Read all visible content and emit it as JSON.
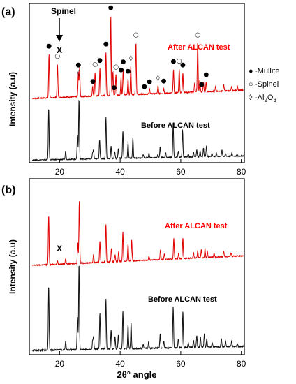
{
  "chart_data": [
    {
      "type": "line",
      "panel": "(a)",
      "xlabel": "",
      "ylabel": "Intensity (a.u)",
      "xlim": [
        10,
        81
      ],
      "x_ticks": [
        20,
        40,
        60,
        80
      ],
      "grid": false,
      "top_marker": {
        "label": "Spinel",
        "symbol": "X",
        "x": 19.3
      },
      "legend": {
        "position": "right",
        "entries": [
          {
            "symbol": "●",
            "label": "-Mullite"
          },
          {
            "symbol": "○",
            "label": "-Spinel"
          },
          {
            "symbol": "◊",
            "label": "-Al2O3",
            "display_prefix": "-Al",
            "display_sub1": "2",
            "display_mid": "O",
            "display_sub2": "3"
          }
        ]
      },
      "series": [
        {
          "name": "After ALCAN test",
          "color": "#ff0000",
          "line_color": "#e00000",
          "peaks": [
            [
              16.5,
              0.55
            ],
            [
              19.3,
              0.42
            ],
            [
              26.2,
              0.3
            ],
            [
              26.6,
              0.36
            ],
            [
              30.9,
              0.12
            ],
            [
              31.7,
              0.3
            ],
            [
              33.3,
              0.35
            ],
            [
              35.3,
              0.55
            ],
            [
              36.9,
              1.0
            ],
            [
              37.6,
              0.3
            ],
            [
              38.6,
              0.26
            ],
            [
              40.3,
              0.22
            ],
            [
              41.0,
              0.32
            ],
            [
              42.6,
              0.2
            ],
            [
              43.5,
              0.36
            ],
            [
              45.2,
              0.65
            ],
            [
              49.7,
              0.06
            ],
            [
              52.5,
              0.1
            ],
            [
              54.4,
              0.06
            ],
            [
              57.6,
              0.3
            ],
            [
              59.5,
              0.3
            ],
            [
              60.7,
              0.25
            ],
            [
              64.6,
              0.12
            ],
            [
              65.6,
              0.62
            ],
            [
              66.3,
              0.15
            ],
            [
              67.5,
              0.12
            ],
            [
              68.4,
              0.12
            ],
            [
              71.5,
              0.06
            ],
            [
              74.2,
              0.08
            ],
            [
              76.8,
              0.05
            ],
            [
              78.7,
              0.06
            ]
          ],
          "markers": [
            {
              "symbol": "●",
              "x": 16.5
            },
            {
              "symbol": "○",
              "x": 19.3
            },
            {
              "symbol": "◊",
              "x": 26.4
            },
            {
              "symbol": "●",
              "x": 26.2
            },
            {
              "symbol": "○",
              "x": 31.7
            },
            {
              "symbol": "●",
              "x": 31.0
            },
            {
              "symbol": "●",
              "x": 33.3
            },
            {
              "symbol": "●",
              "x": 35.3
            },
            {
              "symbol": "●",
              "x": 36.9
            },
            {
              "symbol": "●",
              "x": 38.0
            },
            {
              "symbol": "○",
              "x": 38.6
            },
            {
              "symbol": "●",
              "x": 40.3
            },
            {
              "symbol": "●",
              "x": 41.0
            },
            {
              "symbol": "●",
              "x": 42.6
            },
            {
              "symbol": "◊",
              "x": 43.5
            },
            {
              "symbol": "○",
              "x": 45.2
            },
            {
              "symbol": "●",
              "x": 48.0
            },
            {
              "symbol": "●",
              "x": 49.7
            },
            {
              "symbol": "◊",
              "x": 52.5
            },
            {
              "symbol": "●",
              "x": 54.4
            },
            {
              "symbol": "●",
              "x": 57.6
            },
            {
              "symbol": "○",
              "x": 59.5
            },
            {
              "symbol": "●",
              "x": 60.7
            },
            {
              "symbol": "○",
              "x": 65.6
            },
            {
              "symbol": "●",
              "x": 66.9
            },
            {
              "symbol": "●",
              "x": 68.4
            }
          ]
        },
        {
          "name": "Before ALCAN test",
          "color": "#000000",
          "line_color": "#111111",
          "peaks": [
            [
              16.4,
              0.85
            ],
            [
              22.0,
              0.14
            ],
            [
              25.9,
              0.4
            ],
            [
              26.4,
              1.0
            ],
            [
              30.9,
              0.1
            ],
            [
              31.2,
              0.14
            ],
            [
              33.2,
              0.32
            ],
            [
              35.3,
              0.68
            ],
            [
              37.0,
              0.2
            ],
            [
              38.2,
              0.12
            ],
            [
              39.4,
              0.16
            ],
            [
              40.9,
              0.45
            ],
            [
              42.6,
              0.26
            ],
            [
              44.2,
              0.34
            ],
            [
              47.6,
              0.06
            ],
            [
              49.5,
              0.08
            ],
            [
              52.4,
              0.05
            ],
            [
              53.2,
              0.18
            ],
            [
              55.0,
              0.08
            ],
            [
              57.5,
              0.57
            ],
            [
              59.2,
              0.1
            ],
            [
              60.6,
              0.45
            ],
            [
              62.5,
              0.05
            ],
            [
              64.2,
              0.08
            ],
            [
              65.3,
              0.12
            ],
            [
              66.4,
              0.1
            ],
            [
              67.5,
              0.14
            ],
            [
              68.5,
              0.18
            ],
            [
              70.3,
              0.06
            ],
            [
              71.8,
              0.05
            ],
            [
              73.6,
              0.1
            ],
            [
              74.8,
              0.05
            ],
            [
              76.9,
              0.06
            ],
            [
              78.6,
              0.04
            ]
          ]
        }
      ]
    },
    {
      "type": "line",
      "panel": "(b)",
      "xlabel": "2θ° angle",
      "ylabel": "Intensity (a.u)",
      "xlim": [
        10,
        81
      ],
      "x_ticks": [
        20,
        40,
        60,
        80
      ],
      "grid": false,
      "annotation": {
        "text": "X",
        "x": 19.3
      },
      "series": [
        {
          "name": "After ALCAN test",
          "color": "#ff0000",
          "line_color": "#e00000",
          "peaks": [
            [
              16.4,
              0.72
            ],
            [
              19.3,
              0.05
            ],
            [
              22.0,
              0.08
            ],
            [
              26.0,
              0.3
            ],
            [
              26.5,
              0.9
            ],
            [
              31.2,
              0.12
            ],
            [
              33.3,
              0.3
            ],
            [
              35.3,
              0.55
            ],
            [
              37.1,
              0.2
            ],
            [
              38.3,
              0.1
            ],
            [
              39.5,
              0.14
            ],
            [
              40.9,
              0.43
            ],
            [
              42.6,
              0.25
            ],
            [
              43.8,
              0.3
            ],
            [
              49.5,
              0.06
            ],
            [
              53.3,
              0.14
            ],
            [
              54.6,
              0.08
            ],
            [
              57.7,
              0.3
            ],
            [
              59.3,
              0.08
            ],
            [
              60.7,
              0.3
            ],
            [
              64.2,
              0.08
            ],
            [
              65.6,
              0.1
            ],
            [
              66.8,
              0.12
            ],
            [
              68.0,
              0.12
            ],
            [
              68.8,
              0.08
            ],
            [
              71.0,
              0.06
            ],
            [
              74.2,
              0.08
            ],
            [
              76.6,
              0.05
            ]
          ]
        },
        {
          "name": "Before ALCAN test",
          "color": "#000000",
          "line_color": "#111111",
          "peaks": [
            [
              16.4,
              0.75
            ],
            [
              22.0,
              0.1
            ],
            [
              25.9,
              0.38
            ],
            [
              26.4,
              1.0
            ],
            [
              30.9,
              0.1
            ],
            [
              31.2,
              0.14
            ],
            [
              33.3,
              0.42
            ],
            [
              35.3,
              0.58
            ],
            [
              37.0,
              0.22
            ],
            [
              38.3,
              0.14
            ],
            [
              39.4,
              0.16
            ],
            [
              40.9,
              0.44
            ],
            [
              42.6,
              0.28
            ],
            [
              43.6,
              0.3
            ],
            [
              47.6,
              0.05
            ],
            [
              49.4,
              0.08
            ],
            [
              53.2,
              0.16
            ],
            [
              54.4,
              0.08
            ],
            [
              57.5,
              0.48
            ],
            [
              59.2,
              0.1
            ],
            [
              60.7,
              0.42
            ],
            [
              62.5,
              0.05
            ],
            [
              64.2,
              0.08
            ],
            [
              65.3,
              0.14
            ],
            [
              66.5,
              0.12
            ],
            [
              67.8,
              0.16
            ],
            [
              68.6,
              0.1
            ],
            [
              70.4,
              0.05
            ],
            [
              73.4,
              0.1
            ],
            [
              74.8,
              0.06
            ],
            [
              76.8,
              0.06
            ],
            [
              78.7,
              0.04
            ]
          ]
        }
      ]
    }
  ]
}
